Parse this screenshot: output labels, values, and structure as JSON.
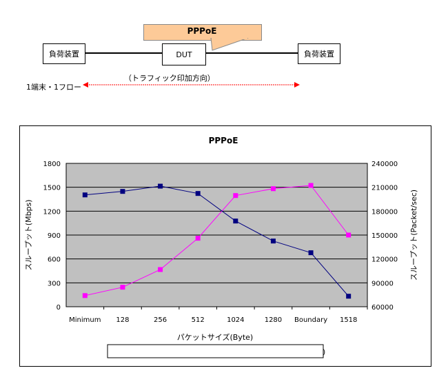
{
  "diagram": {
    "callout": "PPPoE",
    "left_device": "負荷装置",
    "dut": "DUT",
    "right_device": "負荷装置",
    "direction_label": "（トラフィック印加方向）",
    "flow_label": "1端末・1フロー",
    "callout_color": "#fdca98",
    "arrow_color": "#ff0000"
  },
  "chart_data": {
    "type": "line",
    "title": "PPPoE",
    "xlabel": "パケットサイズ(Byte)",
    "ylabel": "スループット(Mbps)",
    "y2label": "スループット(Packet/sec)",
    "categories": [
      "Minimum",
      "128",
      "256",
      "512",
      "1024",
      "1280",
      "Boundary",
      "1518"
    ],
    "ylim": [
      0,
      1800
    ],
    "yticks": [
      0,
      300,
      600,
      900,
      1200,
      1500,
      1800
    ],
    "y2lim": [
      60000,
      240000
    ],
    "y2ticks": [
      60000,
      90000,
      120000,
      150000,
      180000,
      210000,
      240000
    ],
    "grid": true,
    "plot_background": "#c0c0c0",
    "legend_placement": "bottom",
    "series": [
      {
        "name": "スループット(Mbps)",
        "axis": "left",
        "color": "#ff00ff",
        "values": [
          140,
          245,
          467,
          860,
          1396,
          1482,
          1523,
          900
        ]
      },
      {
        "name": "スループット(Packet/sec)",
        "axis": "right",
        "color": "#000080",
        "values": [
          200400,
          204800,
          211400,
          202200,
          167600,
          142500,
          127800,
          73200
        ]
      }
    ]
  }
}
